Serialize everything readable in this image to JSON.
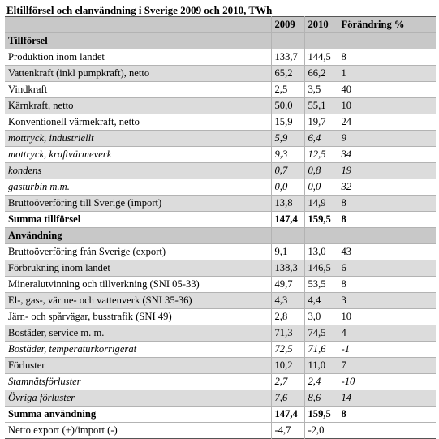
{
  "title": "Eltillförsel och elanvändning i Sverige 2009 och 2010, TWh",
  "columns": [
    "",
    "2009",
    "2010",
    "Förändring %"
  ],
  "rows": [
    {
      "type": "section",
      "label": "Tillförsel",
      "v2009": "",
      "v2010": "",
      "change": ""
    },
    {
      "type": "data",
      "level": 0,
      "label": "Produktion inom landet",
      "v2009": "133,7",
      "v2010": "144,5",
      "change": "8"
    },
    {
      "type": "data",
      "level": 1,
      "shade": true,
      "label": "Vattenkraft (inkl pumpkraft), netto",
      "v2009": "65,2",
      "v2010": "66,2",
      "change": "1"
    },
    {
      "type": "data",
      "level": 1,
      "label": "Vindkraft",
      "v2009": "2,5",
      "v2010": "3,5",
      "change": "40"
    },
    {
      "type": "data",
      "level": 1,
      "shade": true,
      "label": "Kärnkraft, netto",
      "v2009": "50,0",
      "v2010": "55,1",
      "change": "10"
    },
    {
      "type": "data",
      "level": 1,
      "label": "Konventionell värmekraft, netto",
      "v2009": "15,9",
      "v2010": "19,7",
      "change": "24"
    },
    {
      "type": "data",
      "level": 2,
      "italic": true,
      "shade": true,
      "label": "mottryck, industriellt",
      "v2009": "5,9",
      "v2010": "6,4",
      "change": "9"
    },
    {
      "type": "data",
      "level": 2,
      "italic": true,
      "label": "mottryck, kraftvärmeverk",
      "v2009": "9,3",
      "v2010": "12,5",
      "change": "34"
    },
    {
      "type": "data",
      "level": 2,
      "italic": true,
      "shade": true,
      "label": "kondens",
      "v2009": "0,7",
      "v2010": "0,8",
      "change": "19"
    },
    {
      "type": "data",
      "level": 2,
      "italic": true,
      "label": "gasturbin m.m.",
      "v2009": "0,0",
      "v2010": "0,0",
      "change": "32"
    },
    {
      "type": "data",
      "level": 0,
      "shade": true,
      "label": "Bruttoöverföring till Sverige (import)",
      "v2009": "13,8",
      "v2010": "14,9",
      "change": "8"
    },
    {
      "type": "data",
      "level": 0,
      "bold": true,
      "label": "Summa tillförsel",
      "v2009": "147,4",
      "v2010": "159,5",
      "change": "8"
    },
    {
      "type": "section",
      "label": "Användning",
      "v2009": "",
      "v2010": "",
      "change": ""
    },
    {
      "type": "data",
      "level": 0,
      "label": "Bruttoöverföring från Sverige (export)",
      "v2009": "9,1",
      "v2010": "13,0",
      "change": "43"
    },
    {
      "type": "data",
      "level": 0,
      "shade": true,
      "label": "Förbrukning inom landet",
      "v2009": "138,3",
      "v2010": "146,5",
      "change": "6"
    },
    {
      "type": "data",
      "level": 1,
      "label": "Mineralutvinning och tillverkning (SNI 05-33)",
      "v2009": "49,7",
      "v2010": "53,5",
      "change": "8"
    },
    {
      "type": "data",
      "level": 1,
      "shade": true,
      "label": "El-, gas-, värme- och vattenverk (SNI 35-36)",
      "v2009": "4,3",
      "v2010": "4,4",
      "change": "3"
    },
    {
      "type": "data",
      "level": 1,
      "label": "Järn- och spårvägar, busstrafik (SNI 49)",
      "v2009": "2,8",
      "v2010": "3,0",
      "change": "10"
    },
    {
      "type": "data",
      "level": 1,
      "shade": true,
      "label": "Bostäder, service m. m.",
      "v2009": "71,3",
      "v2010": "74,5",
      "change": "4"
    },
    {
      "type": "data",
      "level": 2,
      "italic": true,
      "label": "Bostäder, temperaturkorrigerat",
      "v2009": "72,5",
      "v2010": "71,6",
      "change": "-1"
    },
    {
      "type": "data",
      "level": 1,
      "shade": true,
      "label": "Förluster",
      "v2009": "10,2",
      "v2010": "11,0",
      "change": "7"
    },
    {
      "type": "data",
      "level": 2,
      "italic": true,
      "label": "Stamnätsförluster",
      "v2009": "2,7",
      "v2010": "2,4",
      "change": "-10"
    },
    {
      "type": "data",
      "level": 2,
      "italic": true,
      "shade": true,
      "label": "Övriga förluster",
      "v2009": "7,6",
      "v2010": "8,6",
      "change": "14"
    },
    {
      "type": "data",
      "level": 0,
      "bold": true,
      "label": "Summa användning",
      "v2009": "147,4",
      "v2010": "159,5",
      "change": "8"
    },
    {
      "type": "data",
      "level": 0,
      "label": "Netto export (+)/import (-)",
      "v2009": "-4,7",
      "v2010": "-2,0",
      "change": ""
    }
  ]
}
